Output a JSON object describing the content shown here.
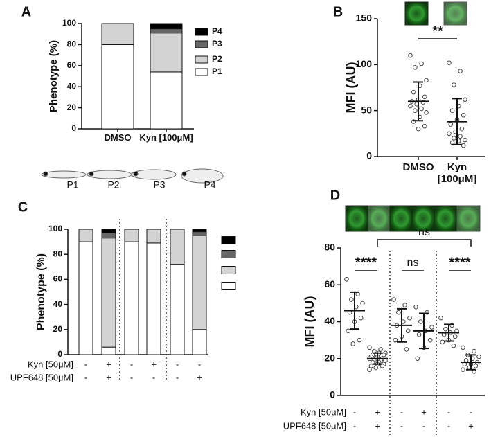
{
  "figure": {
    "phenotypes": [
      "P1",
      "P2",
      "P3",
      "P4"
    ]
  },
  "chart_data": [
    {
      "panel": "A",
      "type": "bar",
      "stacked": true,
      "ylabel": "Phenotype (%)",
      "categories": [
        "DMSO",
        "Kyn [100μM]"
      ],
      "series": [
        {
          "name": "P1",
          "color": "#ffffff",
          "values": [
            80,
            54
          ]
        },
        {
          "name": "P2",
          "color": "#d3d3d3",
          "values": [
            20,
            37
          ]
        },
        {
          "name": "P3",
          "color": "#666666",
          "values": [
            0,
            4
          ]
        },
        {
          "name": "P4",
          "color": "#000000",
          "values": [
            0,
            5
          ]
        }
      ],
      "ylim": [
        0,
        100
      ],
      "yticks": [
        0,
        20,
        40,
        60,
        80,
        100
      ]
    },
    {
      "panel": "B",
      "type": "dotplot",
      "ylabel": "MFI (AU)",
      "categories": [
        "DMSO",
        "Kyn [100μM]"
      ],
      "points": [
        [
          110,
          101,
          97,
          83,
          77,
          70,
          65,
          62,
          60,
          59,
          57,
          55,
          52,
          50,
          48,
          43,
          38,
          33,
          30
        ],
        [
          102,
          93,
          78,
          62,
          55,
          50,
          45,
          40,
          35,
          30,
          27,
          25,
          22,
          20,
          18,
          17,
          15,
          12
        ]
      ],
      "mean": [
        60,
        38
      ],
      "sd": [
        21,
        25
      ],
      "annotations": [
        {
          "text": "**",
          "from": 0,
          "to": 1
        }
      ],
      "ylim": [
        0,
        150
      ],
      "yticks": [
        0,
        50,
        100,
        150
      ]
    },
    {
      "panel": "C",
      "type": "bar",
      "stacked": true,
      "ylabel": "Phenotype (%)",
      "categories": [
        null,
        null,
        null,
        null,
        null,
        null
      ],
      "series": [
        {
          "color": "#ffffff",
          "values": [
            90,
            6,
            90,
            89,
            72,
            20
          ]
        },
        {
          "color": "#d3d3d3",
          "values": [
            10,
            87,
            10,
            11,
            28,
            75
          ]
        },
        {
          "color": "#666666",
          "values": [
            0,
            4,
            0,
            0,
            0,
            3
          ]
        },
        {
          "color": "#000000",
          "values": [
            0,
            3,
            0,
            0,
            0,
            2
          ]
        }
      ],
      "treatments": [
        {
          "label": "Kyn [50μM]",
          "signs": [
            "-",
            "+",
            "-",
            "+",
            "-",
            "-"
          ]
        },
        {
          "label": "UPF648 [50μM]",
          "signs": [
            "-",
            "+",
            "-",
            "-",
            "-",
            "+"
          ]
        }
      ],
      "ylim": [
        0,
        100
      ],
      "yticks": [
        0,
        20,
        40,
        60,
        80,
        100
      ]
    },
    {
      "panel": "D",
      "type": "dotplot",
      "ylabel": "MFI (AU)",
      "categories": [
        null,
        null,
        null,
        null,
        null,
        null
      ],
      "points": [
        [
          63,
          55,
          52,
          50,
          48,
          45,
          42,
          40,
          35,
          30,
          28
        ],
        [
          26,
          25,
          24,
          23,
          23,
          22,
          22,
          21,
          21,
          20,
          20,
          20,
          19,
          19,
          19,
          18,
          18,
          17,
          17,
          16,
          16,
          15,
          14
        ],
        [
          52,
          49,
          45,
          42,
          40,
          38,
          35,
          32,
          30,
          25
        ],
        [
          48,
          45,
          40,
          37,
          35,
          33,
          30,
          26,
          20
        ],
        [
          42,
          38,
          36,
          35,
          34,
          33,
          32,
          30,
          29,
          27
        ],
        [
          26,
          24,
          22,
          21,
          20,
          19,
          18,
          17,
          17,
          16,
          15,
          14,
          13
        ]
      ],
      "mean": [
        46,
        20,
        38,
        35,
        34,
        18
      ],
      "sd": [
        10,
        3,
        9,
        9.5,
        4.5,
        4
      ],
      "annotations": [
        {
          "text": "****",
          "from": 0,
          "to": 1
        },
        {
          "text": "ns",
          "from": 2,
          "to": 3
        },
        {
          "text": "****",
          "from": 4,
          "to": 5
        },
        {
          "text": "ns",
          "from": 1,
          "to": 5
        }
      ],
      "treatments": [
        {
          "label": "Kyn [50μM]",
          "signs": [
            "-",
            "+",
            "-",
            "+",
            "-",
            "-"
          ]
        },
        {
          "label": "UPF648 [50μM]",
          "signs": [
            "-",
            "+",
            "-",
            "-",
            "-",
            "+"
          ]
        }
      ],
      "ylim": [
        0,
        80
      ],
      "yticks": [
        0,
        20,
        40,
        60,
        80
      ]
    }
  ]
}
